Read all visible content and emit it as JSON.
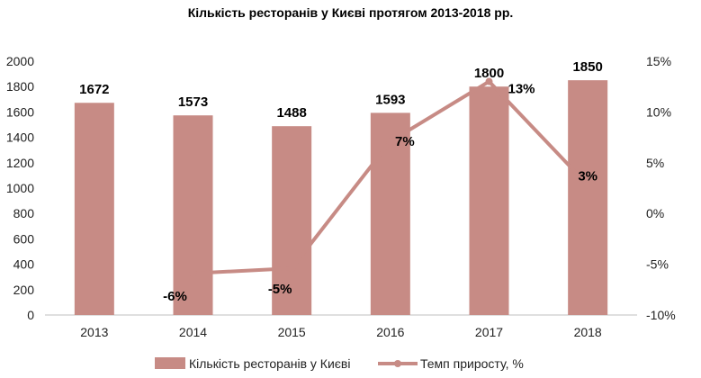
{
  "chart_data": {
    "type": "bar+line",
    "title": "Кількість ресторанів у Києві протягом 2013-2018 рр.",
    "categories": [
      "2013",
      "2014",
      "2015",
      "2016",
      "2017",
      "2018"
    ],
    "series": [
      {
        "name": "Кількість ресторанів у Києві",
        "type": "bar",
        "axis": "left",
        "color": "#c78b85",
        "values": [
          1672,
          1573,
          1488,
          1593,
          1800,
          1850
        ],
        "labels": [
          "1672",
          "1573",
          "1488",
          "1593",
          "1800",
          "1850"
        ]
      },
      {
        "name": "Темп приросту, %",
        "type": "line",
        "axis": "right",
        "color": "#c78b85",
        "values": [
          null,
          -5.9,
          -5.4,
          7.1,
          13.0,
          2.8
        ],
        "labels": [
          null,
          "-6%",
          "-5%",
          "7%",
          "13%",
          "3%"
        ]
      }
    ],
    "y_left": {
      "min": 0,
      "max": 2000,
      "ticks": [
        "0",
        "200",
        "400",
        "600",
        "800",
        "1000",
        "1200",
        "1400",
        "1600",
        "1800",
        "2000"
      ]
    },
    "y_right": {
      "min": -10,
      "max": 15,
      "ticks": [
        "-10%",
        "-5%",
        "0%",
        "5%",
        "10%",
        "15%"
      ]
    },
    "grid": false,
    "legend_position": "bottom"
  }
}
